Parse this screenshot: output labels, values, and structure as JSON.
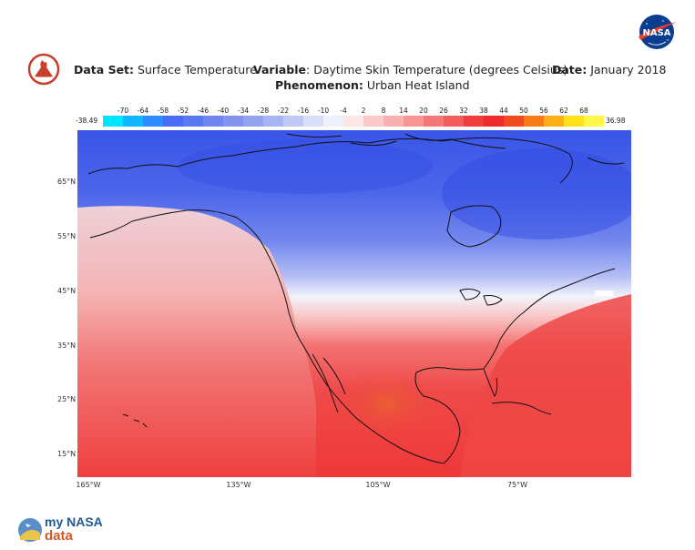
{
  "header": {
    "dataset_label": "Data Set:",
    "dataset_value": "Surface Temperature",
    "variable_label": "Variable",
    "variable_value": ": Daytime Skin Temperature (degrees Celsius)",
    "date_label": "Date:",
    "date_value": "January 2018",
    "phenomenon_label": "Phenomenon:",
    "phenomenon_value": "Urban Heat Island"
  },
  "logos": {
    "nasa_meatball_text": "NASA",
    "mynasadata_line1": "my NASA",
    "mynasadata_line2": "data"
  },
  "colorbar": {
    "min_label": "-38.49",
    "max_label": "36.98",
    "ticks": [
      "-70",
      "-64",
      "-58",
      "-52",
      "-46",
      "-40",
      "-34",
      "-28",
      "-22",
      "-16",
      "-10",
      "-4",
      "2",
      "8",
      "14",
      "20",
      "26",
      "32",
      "38",
      "44",
      "50",
      "56",
      "62",
      "68"
    ],
    "colors": [
      "#00e5ff",
      "#12b8ff",
      "#2e8cff",
      "#4a6cf5",
      "#5a78f0",
      "#6f86ee",
      "#8294ee",
      "#95a3ef",
      "#a9b4f2",
      "#c0c8f5",
      "#d8ddf8",
      "#eef0fc",
      "#fde6e6",
      "#fccaca",
      "#fab0b0",
      "#f79494",
      "#f47878",
      "#f25c5c",
      "#ef3d3d",
      "#ee2a2a",
      "#f04a20",
      "#f57a18",
      "#fbb016",
      "#ffe21a",
      "#fff74a"
    ]
  },
  "map": {
    "lat_labels": [
      "65°N",
      "55°N",
      "45°N",
      "35°N",
      "25°N",
      "15°N"
    ],
    "lon_labels": [
      "165°W",
      "135°W",
      "105°W",
      "75°W"
    ],
    "colors": {
      "cold": "#3c55e6",
      "cool": "#7f92f0",
      "neutral": "#f3f3fb",
      "warm": "#f7aaaa",
      "hot": "#f04848",
      "hottest": "#e86a2a"
    }
  }
}
